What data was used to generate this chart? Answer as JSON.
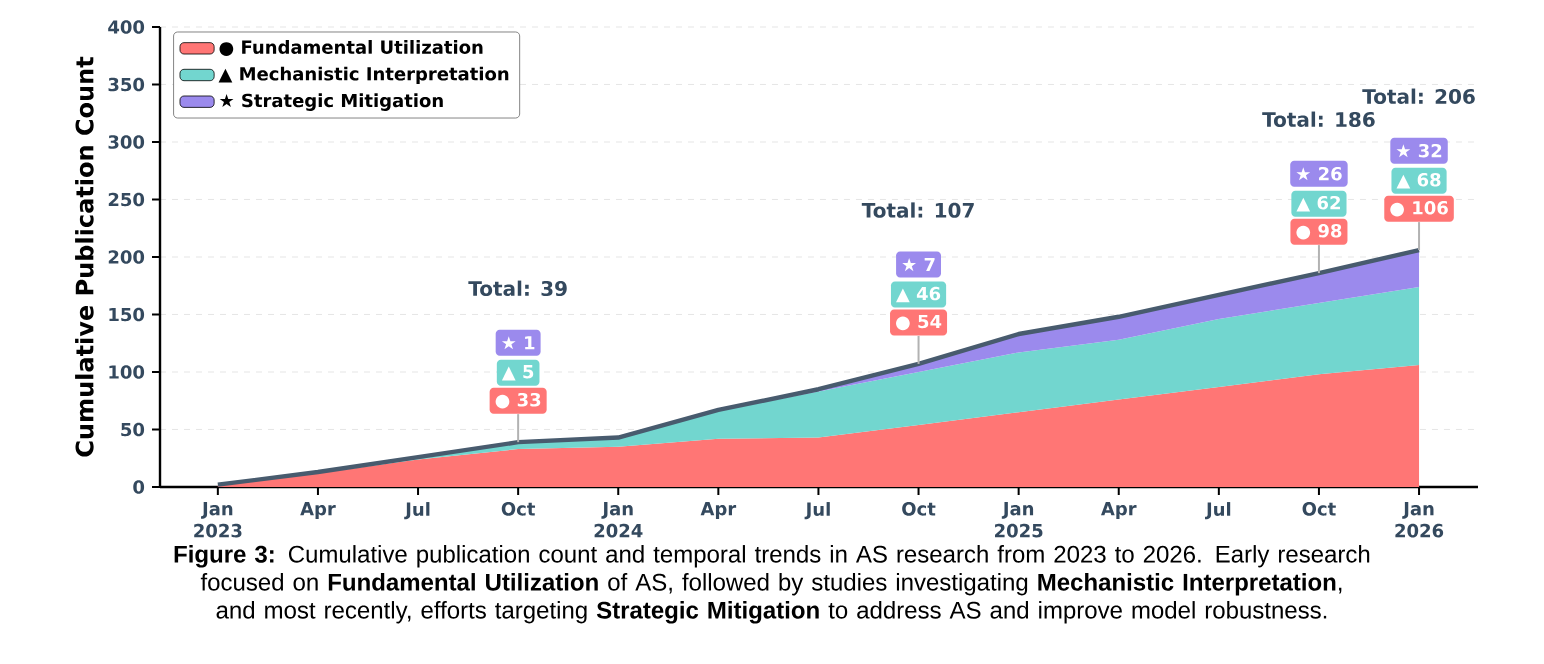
{
  "chart_data": {
    "type": "area",
    "stacked": true,
    "ylabel": "Cumulative Publication Count",
    "x": [
      "2023-01",
      "2023-04",
      "2023-07",
      "2023-10",
      "2024-01",
      "2024-04",
      "2024-07",
      "2024-10",
      "2025-01",
      "2025-04",
      "2025-07",
      "2025-10",
      "2026-01"
    ],
    "series": [
      {
        "name": "● Fundamental Utilization",
        "color": "#ff7675",
        "values": [
          2,
          12,
          24,
          33,
          35,
          42,
          43,
          54,
          65,
          76,
          87,
          98,
          106
        ]
      },
      {
        "name": "▲ Mechanistic Interpretation",
        "color": "#72d6cf",
        "values": [
          0,
          1,
          2,
          5,
          8,
          24,
          40,
          46,
          52,
          52,
          59,
          62,
          68
        ]
      },
      {
        "name": "★ Strategic Mitigation",
        "color": "#9b8aed",
        "values": [
          0,
          0,
          0,
          1,
          0,
          1,
          2,
          7,
          16,
          20,
          21,
          26,
          32
        ]
      }
    ],
    "xlim": [
      "2022-11-09",
      "2026-02-24"
    ],
    "xticks": [
      {
        "value": "2023-01",
        "label": "Jan 2023"
      },
      {
        "value": "2023-04",
        "label": "Apr"
      },
      {
        "value": "2023-07",
        "label": "Jul"
      },
      {
        "value": "2023-10",
        "label": "Oct"
      },
      {
        "value": "2024-01",
        "label": "Jan 2024"
      },
      {
        "value": "2024-04",
        "label": "Apr"
      },
      {
        "value": "2024-07",
        "label": "Jul"
      },
      {
        "value": "2024-10",
        "label": "Oct"
      },
      {
        "value": "2025-01",
        "label": "Jan 2025"
      },
      {
        "value": "2025-04",
        "label": "Apr"
      },
      {
        "value": "2025-07",
        "label": "Jul"
      },
      {
        "value": "2025-10",
        "label": "Oct"
      },
      {
        "value": "2026-01",
        "label": "Jan 2026"
      }
    ],
    "ylim": [
      0,
      400
    ],
    "yticks": [
      0,
      50,
      100,
      150,
      200,
      250,
      300,
      350,
      400
    ],
    "grid": "y",
    "legend": "top left",
    "annotations": [
      "**Figure 3:** Cumulative publication count and temporal trends in AS research from 2023 to 2026. Early research focused on **Fundamental Utilization** of AS, followed by studies investigating **Mechanistic Interpretation**, and most recently, efforts targeting **Strategic Mitigation** to address AS and improve model robustness.",
      {
        "text": "● 33",
        "x": "2023-10",
        "y": 39
      },
      "▲ 5",
      "★ 1",
      "Total: 39",
      {
        "text": "● 54",
        "x": "2024-10",
        "y": 107
      },
      "▲ 46",
      "★ 7",
      "Total: 107",
      {
        "text": "● 98",
        "x": "2025-10",
        "y": 186
      },
      "▲ 62",
      "★ 26",
      "Total: 186",
      {
        "text": "● 106",
        "x": "2026-01",
        "y": 206
      },
      "▲ 68",
      "★ 32",
      "Total: 206"
    ]
  }
}
